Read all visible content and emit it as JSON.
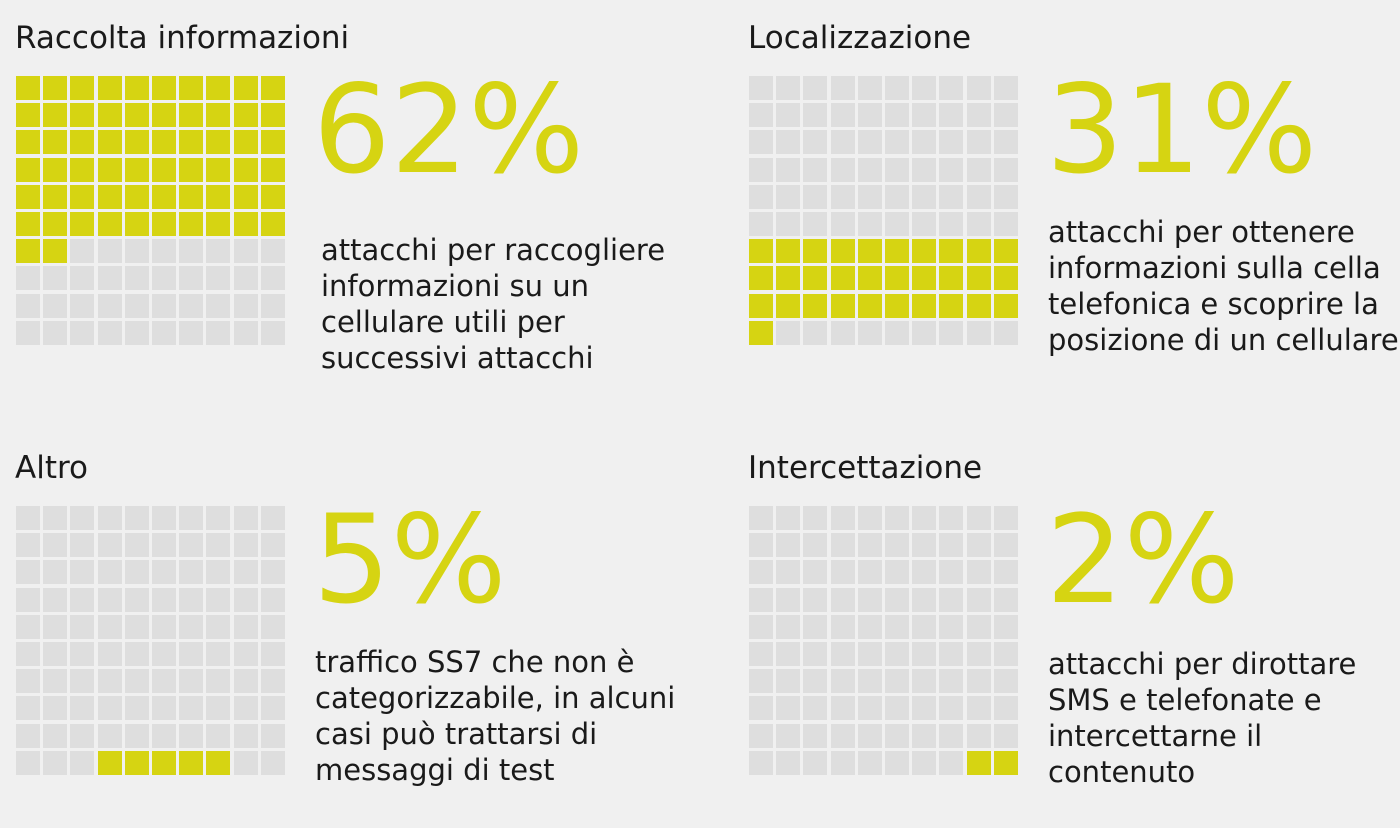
{
  "colors": {
    "filled": "#d6d412",
    "empty": "#dedede",
    "text": "#1a1a1a",
    "background": "#f0f0f0"
  },
  "chart_data": [
    {
      "type": "waffle",
      "title": "Raccolta informazioni",
      "value": 62,
      "value_label": "62%",
      "description": "attacchi per raccogliere\ninformazioni su un\ncellulare utili per\nsuccessivi attacchi",
      "grid": [
        10,
        10
      ],
      "fill_order": "top-down"
    },
    {
      "type": "waffle",
      "title": "Localizzazione",
      "value": 31,
      "value_label": "31%",
      "description": "attacchi per ottenere\ninformazioni sulla cella\ntelefonica e scoprire la\nposizione di un cellulare",
      "grid": [
        10,
        10
      ],
      "fill_order": "bottom-up"
    },
    {
      "type": "waffle",
      "title": "Altro",
      "value": 5,
      "value_label": "5%",
      "description": "traffico SS7 che non è\ncategorizzabile, in alcuni\ncasi può trattarsi di\nmessaggi di test",
      "grid": [
        10,
        10
      ],
      "fill_order": "bottom-offset"
    },
    {
      "type": "waffle",
      "title": "Intercettazione",
      "value": 2,
      "value_label": "2%",
      "description": "attacchi per dirottare\nSMS e telefonate e\nintercettarne il\ncontenuto",
      "grid": [
        10,
        10
      ],
      "fill_order": "bottom-right"
    }
  ]
}
